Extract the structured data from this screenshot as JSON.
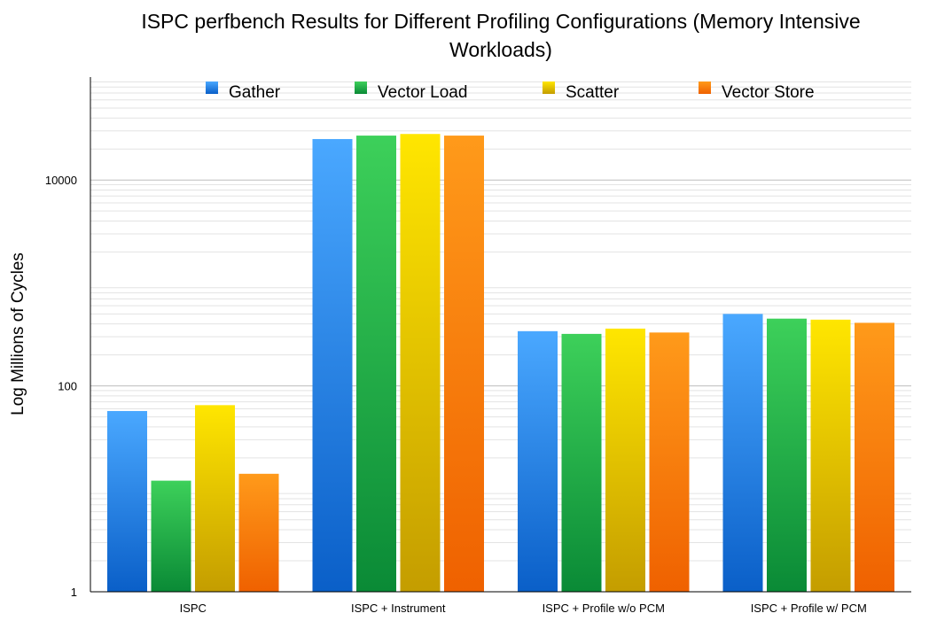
{
  "chart_data": {
    "type": "bar",
    "title": "ISPC perfbench Results for Different Profiling Configurations (Memory Intensive Workloads)",
    "xlabel": "",
    "ylabel": "Log Millions of Cycles",
    "yscale": "log",
    "ylim": [
      1,
      100000
    ],
    "yticks": [
      "1",
      "100",
      "10000"
    ],
    "grid": true,
    "legend_position": "top",
    "categories": [
      "ISPC",
      "ISPC + Instrument",
      "ISPC + Profile w/o PCM",
      "ISPC + Profile w/ PCM"
    ],
    "series": [
      {
        "name": "Gather",
        "values": [
          57,
          25000,
          340,
          500
        ],
        "color": "#1a7be0"
      },
      {
        "name": "Vector Load",
        "values": [
          12,
          27000,
          320,
          450
        ],
        "color": "#1fb046"
      },
      {
        "name": "Scatter",
        "values": [
          65,
          28000,
          360,
          440
        ],
        "color": "#e8c800"
      },
      {
        "name": "Vector Store",
        "values": [
          14,
          27000,
          330,
          410
        ],
        "color": "#f57c00"
      }
    ]
  }
}
